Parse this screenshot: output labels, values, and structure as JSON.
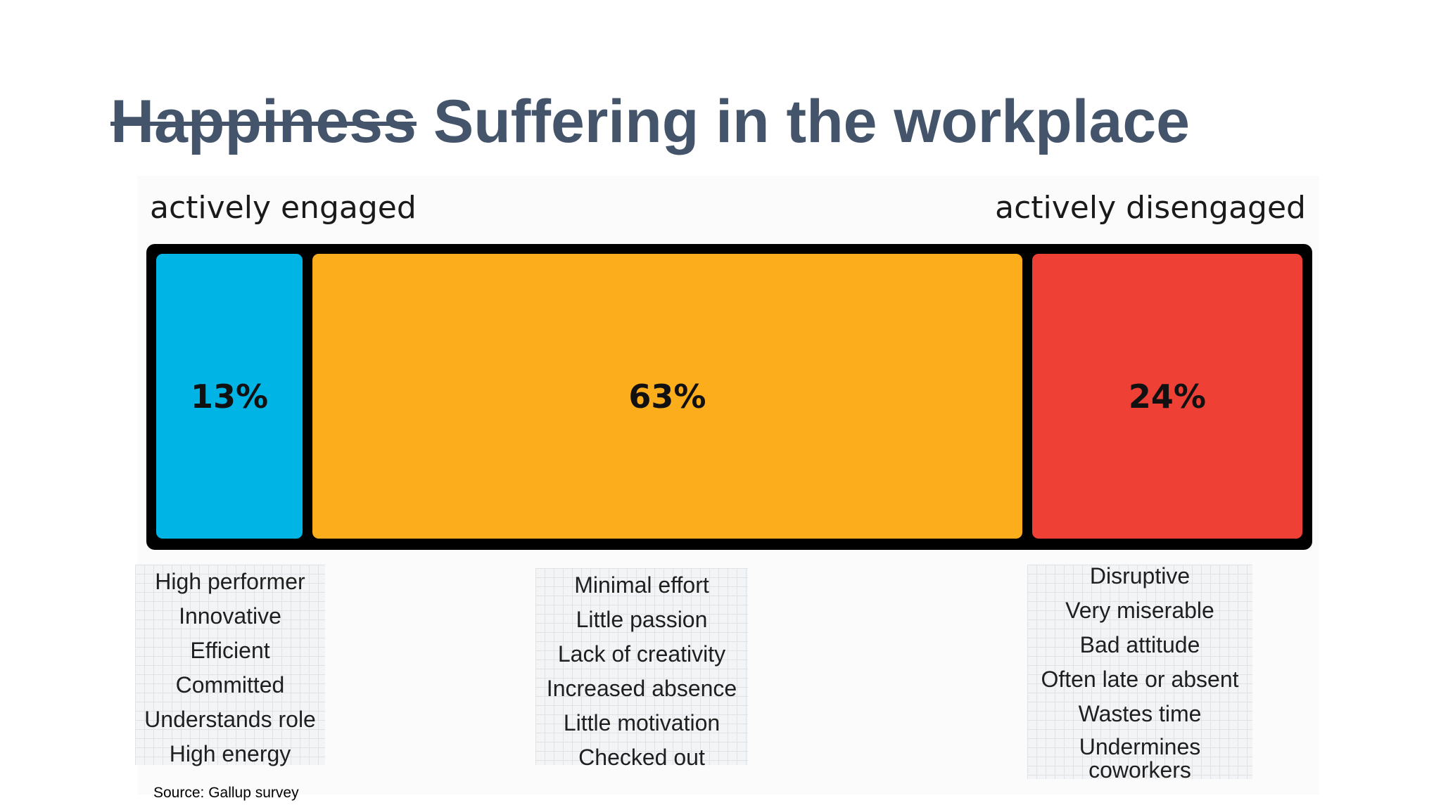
{
  "title": {
    "struck_word": "Happiness",
    "main": "Suffering in the workplace"
  },
  "chart_data": {
    "type": "bar",
    "orientation": "horizontal-stacked-100",
    "left_end_label": "actively engaged",
    "right_end_label": "actively disengaged",
    "categories": [
      "13%",
      "63%",
      "24%"
    ],
    "values": [
      13,
      63,
      24
    ],
    "colors": [
      "#00b4e6",
      "#fbad1c",
      "#ee4035"
    ],
    "descriptions": [
      [
        "High performer",
        "Innovative",
        "Efficient",
        "Committed",
        "Understands role",
        "High energy"
      ],
      [
        "Minimal effort",
        "Little passion",
        "Lack of creativity",
        "Increased absence",
        "Little motivation",
        "Checked out"
      ],
      [
        "Disruptive",
        "Very miserable",
        "Bad attitude",
        "Often late or absent",
        "Wastes time",
        "Undermines coworkers"
      ]
    ]
  },
  "source": "Source: Gallup survey",
  "colors": {
    "title": "#44546a",
    "frame": "#000000"
  }
}
